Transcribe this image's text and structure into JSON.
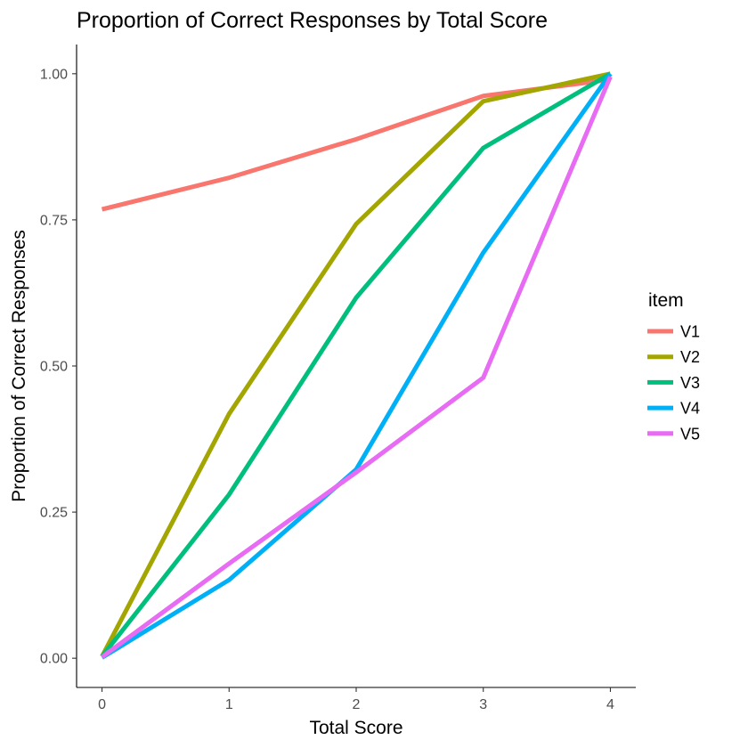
{
  "chart_data": {
    "type": "line",
    "title": "Proportion of Correct Responses by Total Score",
    "xlabel": "Total Score",
    "ylabel": "Proportion of Correct Responses",
    "x": [
      0,
      1,
      2,
      3,
      4
    ],
    "x_tick_labels": [
      "0",
      "1",
      "2",
      "3",
      "4"
    ],
    "xlim": [
      -0.2,
      4.2
    ],
    "ylim": [
      -0.05,
      1.05
    ],
    "y_ticks": [
      0,
      0.25,
      0.5,
      0.75,
      1.0
    ],
    "y_tick_labels": [
      "0.00",
      "0.25",
      "0.50",
      "0.75",
      "1.00"
    ],
    "grid": false,
    "legend": {
      "title": "item",
      "placement": "right"
    },
    "series": [
      {
        "name": "V1",
        "color": "#F8766D",
        "values": [
          0.768,
          0.822,
          0.888,
          0.962,
          0.99
        ]
      },
      {
        "name": "V2",
        "color": "#A3A500",
        "values": [
          0.003,
          0.418,
          0.743,
          0.953,
          1.0
        ]
      },
      {
        "name": "V3",
        "color": "#00BF7D",
        "values": [
          0.003,
          0.28,
          0.617,
          0.873,
          1.0
        ]
      },
      {
        "name": "V4",
        "color": "#00B0F6",
        "values": [
          0.001,
          0.134,
          0.323,
          0.694,
          1.0
        ]
      },
      {
        "name": "V5",
        "color": "#E76BF3",
        "values": [
          0.002,
          0.162,
          0.318,
          0.48,
          0.995
        ]
      }
    ]
  }
}
